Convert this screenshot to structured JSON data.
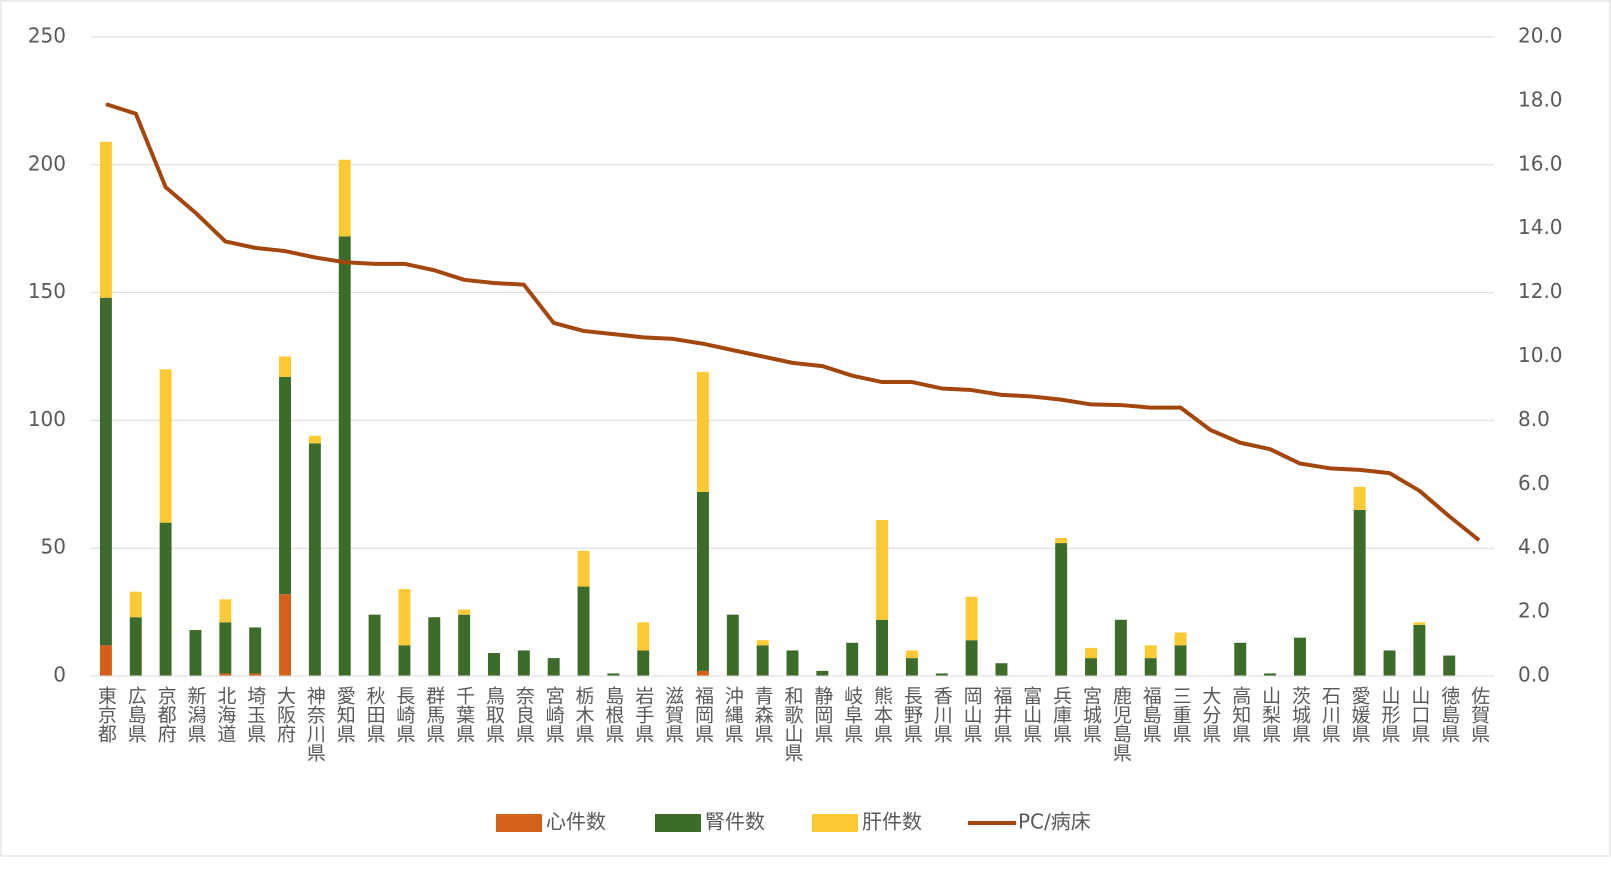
{
  "chart_data": {
    "type": "bar-line",
    "categories": [
      "東京都",
      "広島県",
      "京都府",
      "新潟県",
      "北海道",
      "埼玉県",
      "大阪府",
      "神奈川県",
      "愛知県",
      "秋田県",
      "長崎県",
      "群馬県",
      "千葉県",
      "鳥取県",
      "奈良県",
      "宮崎県",
      "栃木県",
      "島根県",
      "岩手県",
      "滋賀県",
      "福岡県",
      "沖縄県",
      "青森県",
      "和歌山県",
      "静岡県",
      "岐阜県",
      "熊本県",
      "長野県",
      "香川県",
      "岡山県",
      "福井県",
      "富山県",
      "兵庫県",
      "宮城県",
      "鹿児島県",
      "福島県",
      "三重県",
      "大分県",
      "高知県",
      "山梨県",
      "茨城県",
      "石川県",
      "愛媛県",
      "山形県",
      "山口県",
      "徳島県",
      "佐賀県"
    ],
    "series": [
      {
        "name": "心件数",
        "type": "bar",
        "color": "#d4601a",
        "values": [
          12,
          0,
          0,
          0,
          1,
          1,
          32,
          0,
          0,
          0,
          0,
          0,
          0,
          0,
          0,
          0,
          0,
          0,
          0,
          0,
          2,
          0,
          0,
          0,
          0,
          0,
          0,
          0,
          0,
          0,
          0,
          0,
          0,
          0,
          0,
          0,
          0,
          0,
          0,
          0,
          0,
          0,
          0,
          0,
          0,
          0,
          0
        ]
      },
      {
        "name": "腎件数",
        "type": "bar",
        "color": "#3d6b2a",
        "values": [
          136,
          23,
          60,
          18,
          20,
          18,
          85,
          91,
          172,
          24,
          12,
          23,
          24,
          9,
          10,
          7,
          35,
          1,
          10,
          0,
          70,
          24,
          12,
          10,
          2,
          13,
          22,
          7,
          1,
          14,
          5,
          0,
          52,
          7,
          22,
          7,
          12,
          0,
          13,
          1,
          15,
          0,
          65,
          10,
          20,
          8,
          0
        ]
      },
      {
        "name": "肝件数",
        "type": "bar",
        "color": "#fbc934",
        "values": [
          61,
          10,
          60,
          0,
          9,
          0,
          8,
          3,
          30,
          0,
          22,
          0,
          2,
          0,
          0,
          0,
          14,
          0,
          11,
          0,
          47,
          0,
          2,
          0,
          0,
          0,
          39,
          3,
          0,
          17,
          0,
          0,
          2,
          4,
          0,
          5,
          5,
          0,
          0,
          0,
          0,
          0,
          9,
          0,
          1,
          0,
          0
        ]
      },
      {
        "name": "PC/病床",
        "type": "line",
        "axis": "y2",
        "color": "#a3470f",
        "values": [
          17.9,
          17.6,
          15.3,
          14.5,
          13.6,
          13.4,
          13.3,
          13.1,
          12.95,
          12.9,
          12.9,
          12.7,
          12.4,
          12.3,
          12.25,
          11.05,
          10.8,
          10.7,
          10.6,
          10.55,
          10.4,
          10.2,
          10.0,
          9.8,
          9.7,
          9.4,
          9.2,
          9.2,
          9.0,
          8.95,
          8.8,
          8.75,
          8.65,
          8.5,
          8.48,
          8.4,
          8.4,
          7.7,
          7.3,
          7.1,
          6.65,
          6.5,
          6.45,
          6.35,
          5.8,
          5.0,
          4.25
        ]
      }
    ],
    "ylim": [
      0,
      250
    ],
    "yticks": [
      0,
      50,
      100,
      150,
      200,
      250
    ],
    "y2lim": [
      0,
      20
    ],
    "y2ticks": [
      {
        "value": 0,
        "label": "0.0"
      },
      {
        "value": 2,
        "label": "2.0"
      },
      {
        "value": 4,
        "label": "4.0"
      },
      {
        "value": 6,
        "label": "6.0"
      },
      {
        "value": 8,
        "label": "8.0"
      },
      {
        "value": 10,
        "label": "10.0"
      },
      {
        "value": 12,
        "label": "12.0"
      },
      {
        "value": 14,
        "label": "14.0"
      },
      {
        "value": 16,
        "label": "16.0"
      },
      {
        "value": 18,
        "label": "18.0"
      },
      {
        "value": 20,
        "label": "20.0"
      }
    ],
    "legend": "bottom"
  }
}
